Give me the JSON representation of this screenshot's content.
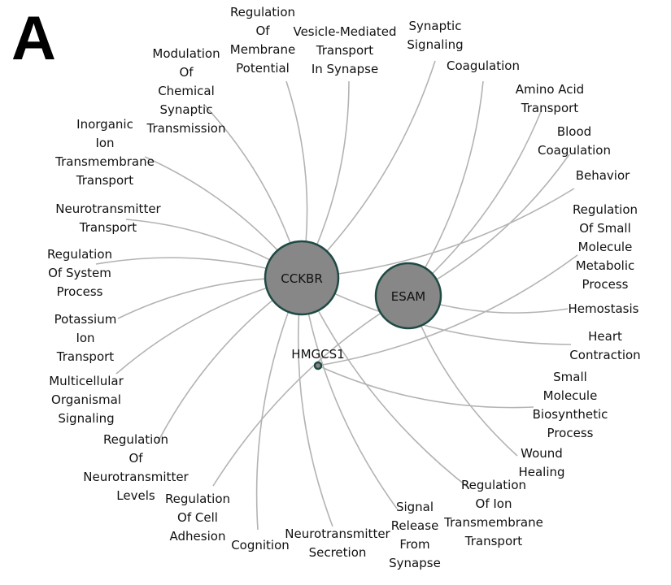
{
  "panel_label": "A",
  "genes": [
    {
      "id": "CCKBR",
      "label": "CCKBR",
      "size": "large"
    },
    {
      "id": "ESAM",
      "label": "ESAM",
      "size": "large"
    },
    {
      "id": "HMGCS1",
      "label": "HMGCS1",
      "size": "small"
    }
  ],
  "terms": [
    {
      "id": "t1",
      "lines": [
        "Regulation",
        "Of",
        "Membrane",
        "Potential"
      ]
    },
    {
      "id": "t2",
      "lines": [
        "Vesicle-Mediated",
        "Transport",
        "In Synapse"
      ]
    },
    {
      "id": "t3",
      "lines": [
        "Synaptic",
        "Signaling"
      ]
    },
    {
      "id": "t4",
      "lines": [
        "Coagulation"
      ]
    },
    {
      "id": "t5",
      "lines": [
        "Amino Acid",
        "Transport"
      ]
    },
    {
      "id": "t6",
      "lines": [
        "Blood",
        "Coagulation"
      ]
    },
    {
      "id": "t7",
      "lines": [
        "Behavior"
      ]
    },
    {
      "id": "t8",
      "lines": [
        "Regulation",
        "Of Small",
        "Molecule",
        "Metabolic",
        "Process"
      ]
    },
    {
      "id": "t9",
      "lines": [
        "Hemostasis"
      ]
    },
    {
      "id": "t10",
      "lines": [
        "Heart",
        "Contraction"
      ]
    },
    {
      "id": "t11",
      "lines": [
        "Small",
        "Molecule",
        "Biosynthetic",
        "Process"
      ]
    },
    {
      "id": "t12",
      "lines": [
        "Wound",
        "Healing"
      ]
    },
    {
      "id": "t13",
      "lines": [
        "Regulation",
        "Of Ion",
        "Transmembrane",
        "Transport"
      ]
    },
    {
      "id": "t14",
      "lines": [
        "Signal",
        "Release",
        "From",
        "Synapse"
      ]
    },
    {
      "id": "t15",
      "lines": [
        "Neurotransmitter",
        "Secretion"
      ]
    },
    {
      "id": "t16",
      "lines": [
        "Cognition"
      ]
    },
    {
      "id": "t17",
      "lines": [
        "Regulation",
        "Of Cell",
        "Adhesion"
      ]
    },
    {
      "id": "t18",
      "lines": [
        "Regulation",
        "Of",
        "Neurotransmitter",
        "Levels"
      ]
    },
    {
      "id": "t19",
      "lines": [
        "Multicellular",
        "Organismal",
        "Signaling"
      ]
    },
    {
      "id": "t20",
      "lines": [
        "Potassium",
        "Ion",
        "Transport"
      ]
    },
    {
      "id": "t21",
      "lines": [
        "Regulation",
        "Of System",
        "Process"
      ]
    },
    {
      "id": "t22",
      "lines": [
        "Neurotransmitter",
        "Transport"
      ]
    },
    {
      "id": "t23",
      "lines": [
        "Inorganic",
        "Ion",
        "Transmembrane",
        "Transport"
      ]
    },
    {
      "id": "t24",
      "lines": [
        "Modulation",
        "Of",
        "Chemical",
        "Synaptic",
        "Transmission"
      ]
    }
  ],
  "edges": [
    {
      "gene": "CCKBR",
      "term": "t1"
    },
    {
      "gene": "CCKBR",
      "term": "t2"
    },
    {
      "gene": "CCKBR",
      "term": "t3"
    },
    {
      "gene": "ESAM",
      "term": "t4"
    },
    {
      "gene": "ESAM",
      "term": "t5"
    },
    {
      "gene": "ESAM",
      "term": "t6"
    },
    {
      "gene": "CCKBR",
      "term": "t7"
    },
    {
      "gene": "HMGCS1",
      "term": "t8"
    },
    {
      "gene": "ESAM",
      "term": "t9"
    },
    {
      "gene": "CCKBR",
      "term": "t10"
    },
    {
      "gene": "HMGCS1",
      "term": "t11"
    },
    {
      "gene": "ESAM",
      "term": "t12"
    },
    {
      "gene": "CCKBR",
      "term": "t13"
    },
    {
      "gene": "CCKBR",
      "term": "t14"
    },
    {
      "gene": "CCKBR",
      "term": "t15"
    },
    {
      "gene": "CCKBR",
      "term": "t16"
    },
    {
      "gene": "ESAM",
      "term": "t17"
    },
    {
      "gene": "CCKBR",
      "term": "t18"
    },
    {
      "gene": "CCKBR",
      "term": "t19"
    },
    {
      "gene": "CCKBR",
      "term": "t20"
    },
    {
      "gene": "CCKBR",
      "term": "t21"
    },
    {
      "gene": "CCKBR",
      "term": "t22"
    },
    {
      "gene": "CCKBR",
      "term": "t23"
    },
    {
      "gene": "CCKBR",
      "term": "t24"
    }
  ],
  "colors": {
    "gene_fill": "#878787",
    "gene_stroke": "#1f4a44",
    "edge": "#b3b3b3",
    "text": "#111111"
  }
}
